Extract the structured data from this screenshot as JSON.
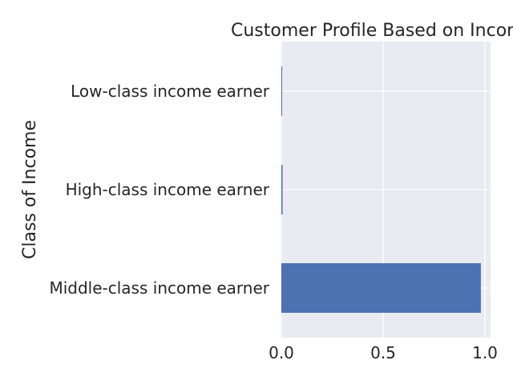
{
  "chart_data": {
    "type": "bar",
    "orientation": "horizontal",
    "title": "Customer Profile Based on Income",
    "xlabel": "",
    "ylabel": "Class of Income",
    "categories": [
      "Middle-class income earner",
      "High-class income earner",
      "Low-class income earner"
    ],
    "values": [
      0.98,
      0.006,
      0.004
    ],
    "xlim": [
      0,
      1.02
    ],
    "xticks": [
      0.0,
      0.5,
      1.0
    ],
    "xtick_labels": [
      "0.0",
      "0.5",
      "1.0"
    ],
    "grid": true,
    "bar_color": "#4C72B0",
    "background_color": "#EAEAF2"
  }
}
